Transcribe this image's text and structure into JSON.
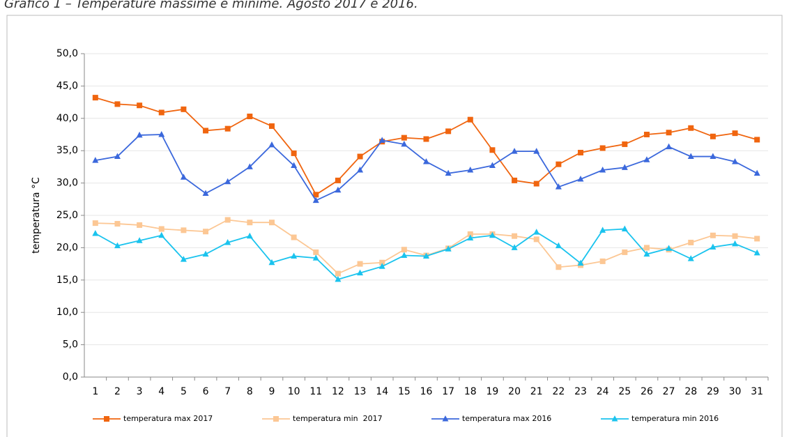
{
  "chart_data": {
    "type": "line",
    "title": "Grafico 1 – Temperature massime e minime. Agosto 2017 e 2016.",
    "y_label": "temperatura °C",
    "categories": [
      "1",
      "2",
      "3",
      "4",
      "5",
      "6",
      "7",
      "8",
      "9",
      "10",
      "11",
      "12",
      "13",
      "14",
      "15",
      "16",
      "17",
      "18",
      "19",
      "20",
      "21",
      "22",
      "23",
      "24",
      "25",
      "26",
      "27",
      "28",
      "29",
      "30",
      "31"
    ],
    "ylim": [
      0,
      50
    ],
    "yticks": [
      {
        "value": 0,
        "label": "0,0"
      },
      {
        "value": 5,
        "label": "5,0"
      },
      {
        "value": 10,
        "label": "10,0"
      },
      {
        "value": 15,
        "label": "15,0"
      },
      {
        "value": 20,
        "label": "20,0"
      },
      {
        "value": 25,
        "label": "25,0"
      },
      {
        "value": 30,
        "label": "30,0"
      },
      {
        "value": 35,
        "label": "35,0"
      },
      {
        "value": 40,
        "label": "40,0"
      },
      {
        "value": 45,
        "label": "45,0"
      },
      {
        "value": 50,
        "label": "50,0"
      }
    ],
    "grid": true,
    "series": [
      {
        "name": "temperatura max 2017",
        "color": "#f0650f",
        "marker": "square",
        "values": [
          43.2,
          42.2,
          42.0,
          40.9,
          41.4,
          38.1,
          38.4,
          40.3,
          38.8,
          34.6,
          28.2,
          30.4,
          34.1,
          36.4,
          37.0,
          36.8,
          38.0,
          39.8,
          35.1,
          30.4,
          29.9,
          32.9,
          34.7,
          35.4,
          36.0,
          37.5,
          37.8,
          38.5,
          37.2,
          37.7,
          36.7
        ]
      },
      {
        "name": "temperatura min  2017",
        "color": "#fcc794",
        "marker": "square",
        "values": [
          23.8,
          23.7,
          23.5,
          22.9,
          22.7,
          22.5,
          24.3,
          23.9,
          23.9,
          21.6,
          19.3,
          16.0,
          17.5,
          17.7,
          19.7,
          18.8,
          19.9,
          22.1,
          22.1,
          21.8,
          21.3,
          17.0,
          17.3,
          17.9,
          19.3,
          20.0,
          19.7,
          20.8,
          21.9,
          21.8,
          21.4
        ]
      },
      {
        "name": "temperatura max 2016",
        "color": "#3b68dc",
        "marker": "triangle",
        "values": [
          33.5,
          34.1,
          37.4,
          37.5,
          30.9,
          28.4,
          30.2,
          32.5,
          35.9,
          32.7,
          27.3,
          28.9,
          32.0,
          36.6,
          36.0,
          33.3,
          31.5,
          32.0,
          32.7,
          34.9,
          34.9,
          29.4,
          30.6,
          32.0,
          32.4,
          33.6,
          35.6,
          34.1,
          34.1,
          33.3,
          31.5
        ]
      },
      {
        "name": "temperatura min 2016",
        "color": "#1ac3ee",
        "marker": "triangle",
        "values": [
          22.2,
          20.3,
          21.1,
          21.9,
          18.2,
          19.0,
          20.8,
          21.8,
          17.7,
          18.7,
          18.4,
          15.1,
          16.1,
          17.1,
          18.8,
          18.7,
          19.8,
          21.5,
          21.9,
          20.0,
          22.4,
          20.3,
          17.6,
          22.7,
          22.9,
          19.0,
          19.9,
          18.3,
          20.1,
          20.6,
          19.2
        ]
      }
    ]
  }
}
